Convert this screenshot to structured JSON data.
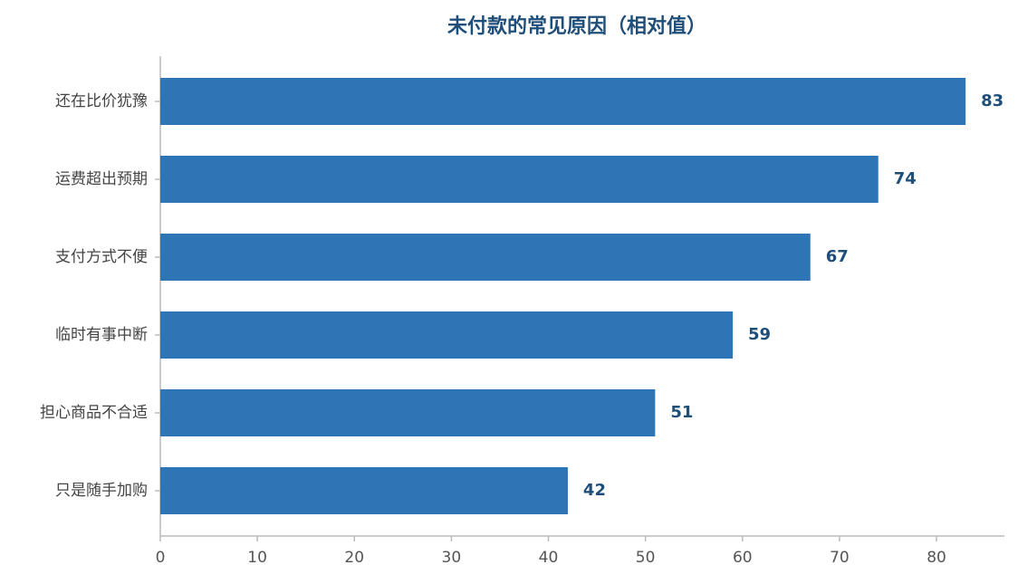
{
  "chart_data": {
    "type": "barh",
    "title": "未付款的常见原因（相对值）",
    "categories": [
      "还在比价犹豫",
      "运费超出预期",
      "支付方式不便",
      "临时有事中断",
      "担心商品不合适",
      "只是随手加购"
    ],
    "values": [
      83,
      74,
      67,
      59,
      51,
      42
    ],
    "color": "#2e75b6",
    "xlim": [
      0,
      87
    ],
    "xticks": [
      0,
      10,
      20,
      30,
      40,
      50,
      60,
      70,
      80
    ]
  }
}
